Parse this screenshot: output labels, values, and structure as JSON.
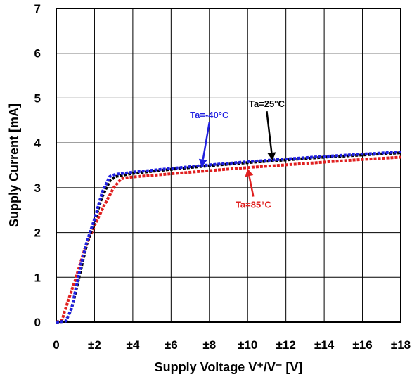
{
  "chart_data": {
    "type": "line",
    "title": "",
    "xlabel": "Supply Voltage V⁺/V⁻ [V]",
    "ylabel": "Supply Current [mA]",
    "xlim": [
      0,
      18
    ],
    "ylim": [
      0,
      7
    ],
    "grid": true,
    "x_ticks": [
      0,
      2,
      4,
      6,
      8,
      10,
      12,
      14,
      16,
      18
    ],
    "x_tick_labels": [
      "0",
      "±2",
      "±4",
      "±6",
      "±8",
      "±10",
      "±12",
      "±14",
      "±16",
      "±18"
    ],
    "y_ticks": [
      0,
      1,
      2,
      3,
      4,
      5,
      6,
      7
    ],
    "y_tick_labels": [
      "0",
      "1",
      "2",
      "3",
      "4",
      "5",
      "6",
      "7"
    ],
    "series": [
      {
        "name": "Ta=-40°C",
        "color": "#1f1fe0",
        "x": [
          0.0,
          0.5,
          0.8,
          1.0,
          1.3,
          1.6,
          2.0,
          2.4,
          2.8,
          3.1,
          3.5,
          4.0,
          6.0,
          8.0,
          10.0,
          12.0,
          14.0,
          16.0,
          18.0
        ],
        "y": [
          0.0,
          0.02,
          0.3,
          0.7,
          1.3,
          1.8,
          2.3,
          2.9,
          3.25,
          3.3,
          3.32,
          3.35,
          3.43,
          3.51,
          3.58,
          3.64,
          3.7,
          3.75,
          3.8
        ]
      },
      {
        "name": "Ta=25°C",
        "color": "#000000",
        "x": [
          0.0,
          0.5,
          0.8,
          1.0,
          1.3,
          1.6,
          2.0,
          2.4,
          2.8,
          3.1,
          3.5,
          4.0,
          6.0,
          8.0,
          10.0,
          12.0,
          14.0,
          16.0,
          18.0
        ],
        "y": [
          0.0,
          0.02,
          0.3,
          0.65,
          1.2,
          1.75,
          2.25,
          2.8,
          3.15,
          3.25,
          3.28,
          3.32,
          3.41,
          3.49,
          3.56,
          3.62,
          3.68,
          3.73,
          3.78
        ]
      },
      {
        "name": "Ta=85°C",
        "color": "#e01f1f",
        "x": [
          0.0,
          0.3,
          0.6,
          1.0,
          1.5,
          2.0,
          2.5,
          3.0,
          3.4,
          3.8,
          4.0,
          6.0,
          8.0,
          10.0,
          12.0,
          14.0,
          16.0,
          18.0
        ],
        "y": [
          0.0,
          0.05,
          0.45,
          0.95,
          1.65,
          2.15,
          2.6,
          3.0,
          3.2,
          3.23,
          3.24,
          3.31,
          3.38,
          3.45,
          3.51,
          3.57,
          3.63,
          3.68
        ]
      }
    ],
    "annotations": [
      {
        "text": "Ta=-40°C",
        "color": "#1f1fe0",
        "x": 8.0,
        "y": 4.55,
        "arrow_to": [
          7.6,
          3.46
        ]
      },
      {
        "text": "Ta=25°C",
        "color": "#000000",
        "x": 11.0,
        "y": 4.8,
        "arrow_to": [
          11.3,
          3.61
        ]
      },
      {
        "text": "Ta=85°C",
        "color": "#e01f1f",
        "x": 10.3,
        "y": 2.55,
        "arrow_to": [
          10.0,
          3.43
        ]
      }
    ]
  }
}
